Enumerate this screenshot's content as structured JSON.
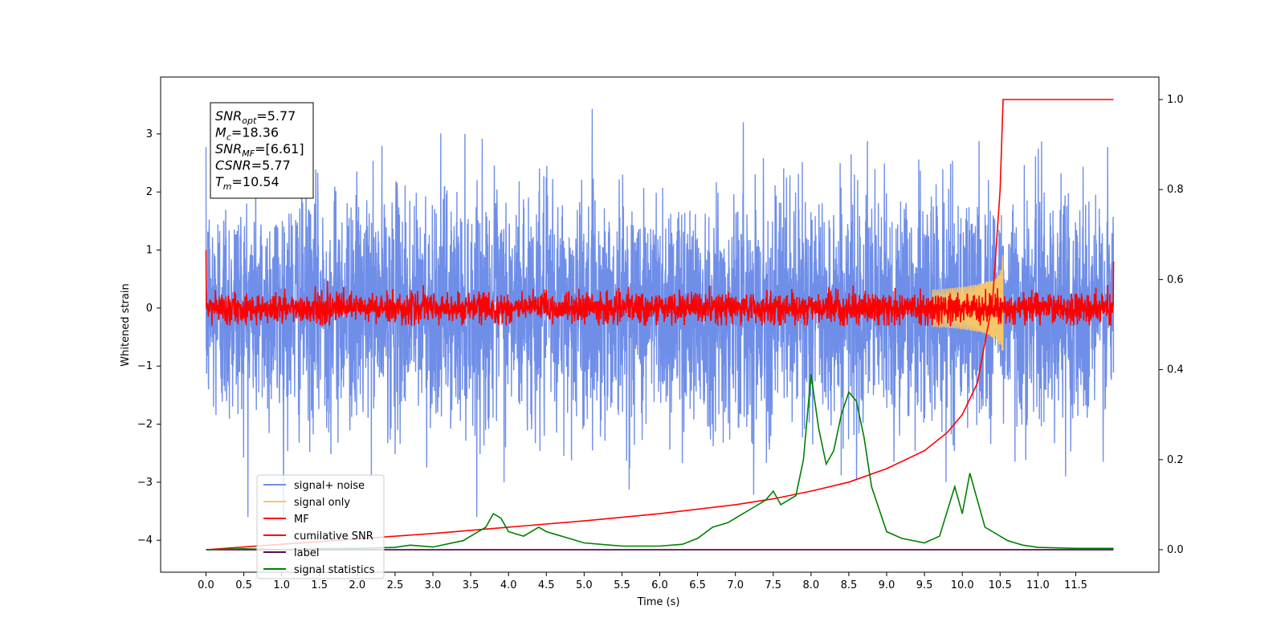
{
  "chart_data": {
    "type": "line",
    "xlabel": "Time (s)",
    "ylabel": "Whitened strain",
    "xlim": [
      -0.6,
      12.6
    ],
    "ylim": [
      -4.55,
      3.98
    ],
    "y2lim": [
      -0.05,
      1.05
    ],
    "x_ticks": [
      "0.0",
      "0.5",
      "1.0",
      "1.5",
      "2.0",
      "2.5",
      "3.0",
      "3.5",
      "4.0",
      "4.5",
      "5.0",
      "5.5",
      "6.0",
      "6.5",
      "7.0",
      "7.5",
      "8.0",
      "8.5",
      "9.0",
      "9.5",
      "10.0",
      "10.5",
      "11.0",
      "11.5"
    ],
    "y_ticks": [
      3,
      2,
      1,
      0,
      -1,
      -2,
      -3,
      -4
    ],
    "y2_ticks": [
      "0.0",
      "0.2",
      "0.4",
      "0.6",
      "0.8",
      "1.0"
    ],
    "colors": {
      "signal_noise": "#6f8ee8",
      "signal_only": "#f5c76a",
      "mf": "#ff0000",
      "cumulative": "#ff0000",
      "label": "#5b0a5b",
      "stats": "#008000"
    },
    "info_box": [
      {
        "sym": "SNR",
        "sub": "opt",
        "val": "=5.77"
      },
      {
        "sym": "M",
        "sub": "c",
        "val": "=18.36"
      },
      {
        "sym": "SNR",
        "sub": "MF",
        "val": "=[6.61]"
      },
      {
        "sym": "CSNR",
        "sub": "",
        "val": "=5.77"
      },
      {
        "sym": "T",
        "sub": "m",
        "val": "=10.54"
      }
    ],
    "series": [
      {
        "name": "signal+ noise",
        "key": "signal_noise",
        "x_range": [
          0.0,
          12.0
        ],
        "approx_std": 1.0,
        "y_range": [
          -3.6,
          3.6
        ]
      },
      {
        "name": "signal only",
        "key": "signal_only",
        "merger_time": 10.54,
        "peak_amplitude": 1.0
      },
      {
        "name": "MF",
        "key": "mf",
        "x_range": [
          0.0,
          12.0
        ],
        "y_range": [
          -0.3,
          0.5
        ]
      },
      {
        "name": "cumilative SNR",
        "key": "cumulative",
        "x": [
          0.0,
          1.0,
          2.0,
          3.0,
          4.0,
          5.0,
          6.0,
          7.0,
          7.5,
          8.0,
          8.5,
          9.0,
          9.5,
          9.8,
          10.0,
          10.2,
          10.4,
          10.5,
          10.54,
          12.0
        ],
        "y2": [
          0.0,
          0.012,
          0.024,
          0.036,
          0.05,
          0.064,
          0.08,
          0.1,
          0.113,
          0.13,
          0.15,
          0.18,
          0.22,
          0.26,
          0.3,
          0.37,
          0.55,
          0.8,
          1.0,
          1.0
        ]
      },
      {
        "name": "label",
        "key": "label",
        "x": [
          0.0,
          12.0
        ],
        "y2": [
          0.0,
          0.0
        ]
      },
      {
        "name": "signal statistics",
        "key": "stats",
        "x": [
          0.0,
          0.5,
          1.0,
          1.5,
          2.0,
          2.5,
          2.7,
          3.0,
          3.4,
          3.7,
          3.8,
          3.9,
          4.0,
          4.2,
          4.4,
          4.5,
          4.6,
          4.8,
          5.0,
          5.5,
          6.0,
          6.3,
          6.5,
          6.7,
          6.9,
          7.0,
          7.2,
          7.4,
          7.5,
          7.6,
          7.8,
          7.9,
          8.0,
          8.1,
          8.2,
          8.3,
          8.4,
          8.5,
          8.6,
          8.7,
          8.8,
          9.0,
          9.2,
          9.5,
          9.7,
          9.9,
          10.0,
          10.1,
          10.2,
          10.3,
          10.4,
          10.6,
          10.8,
          11.0,
          11.5,
          12.0
        ],
        "y2": [
          0.0,
          0.002,
          0.0,
          0.002,
          0.003,
          0.005,
          0.01,
          0.006,
          0.02,
          0.05,
          0.08,
          0.07,
          0.04,
          0.03,
          0.05,
          0.04,
          0.035,
          0.025,
          0.015,
          0.008,
          0.008,
          0.012,
          0.025,
          0.05,
          0.06,
          0.07,
          0.09,
          0.11,
          0.13,
          0.1,
          0.12,
          0.2,
          0.39,
          0.27,
          0.19,
          0.22,
          0.3,
          0.35,
          0.33,
          0.25,
          0.14,
          0.04,
          0.025,
          0.015,
          0.03,
          0.14,
          0.08,
          0.17,
          0.11,
          0.05,
          0.04,
          0.02,
          0.01,
          0.005,
          0.003,
          0.003
        ]
      }
    ]
  }
}
